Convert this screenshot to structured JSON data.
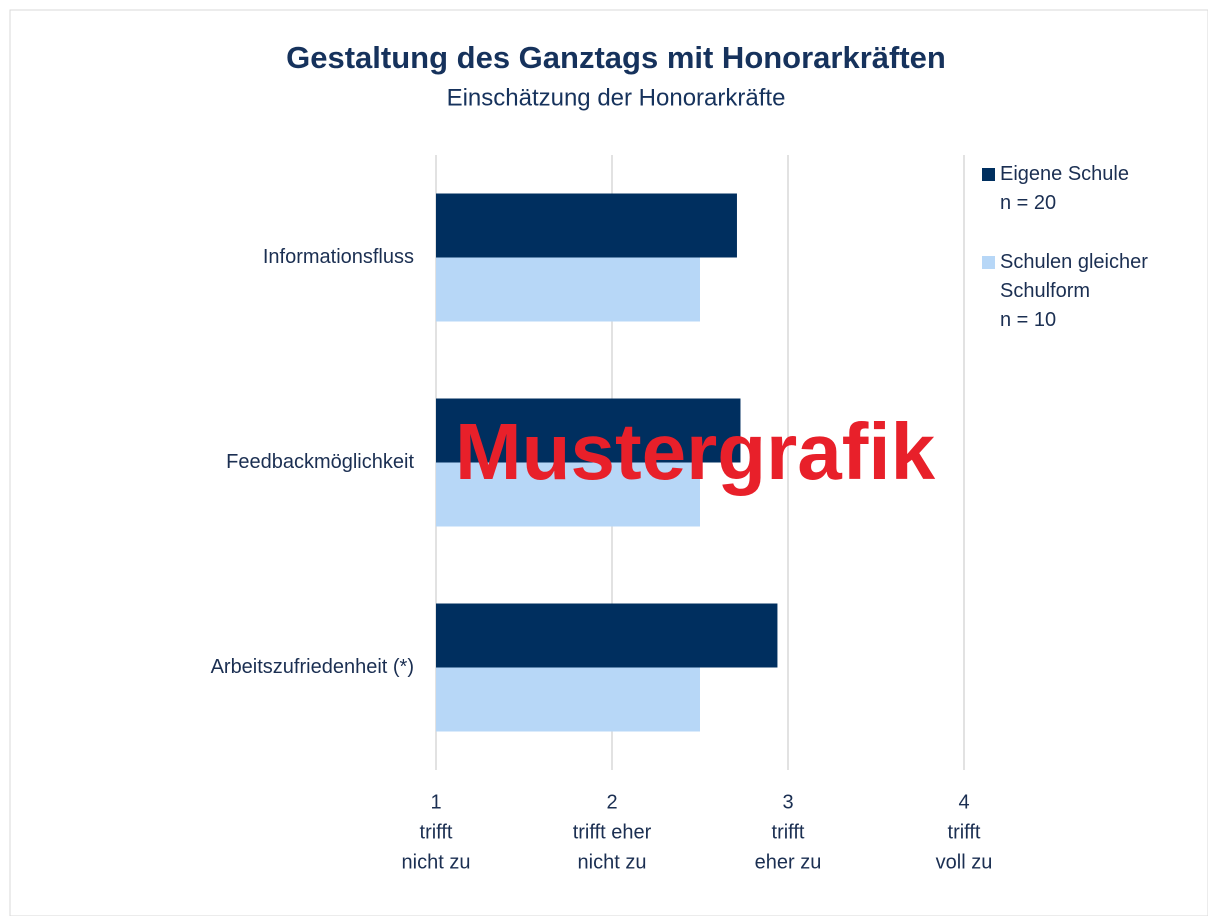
{
  "chart_data": {
    "type": "bar",
    "orientation": "horizontal",
    "title": "Gestaltung des Ganztags mit Honorarkräften",
    "subtitle": "Einschätzung  der Honorarkräfte",
    "categories": [
      "Informationsfluss",
      "Feedbackmöglichkeit",
      "Arbeitszufriedenheit (*)"
    ],
    "series": [
      {
        "name": "Eigene Schule",
        "n_label": "n = 20",
        "color": "#002f5f",
        "values": [
          2.71,
          2.73,
          2.94
        ]
      },
      {
        "name": "Schulen gleicher Schulform",
        "n_label": "n = 10",
        "color": "#b7d7f7",
        "values": [
          2.5,
          2.5,
          2.5
        ]
      }
    ],
    "xlim": [
      1,
      4
    ],
    "xticks": [
      1,
      2,
      3,
      4
    ],
    "xtick_descriptions": [
      [
        "trifft",
        "nicht zu"
      ],
      [
        "trifft  eher",
        "nicht zu"
      ],
      [
        "trifft",
        "eher zu"
      ],
      [
        "trifft",
        "voll  zu"
      ]
    ],
    "grid": true,
    "legend": "right",
    "annotations": [
      {
        "text": "Mustergrafik",
        "color": "#e8202a"
      }
    ]
  }
}
